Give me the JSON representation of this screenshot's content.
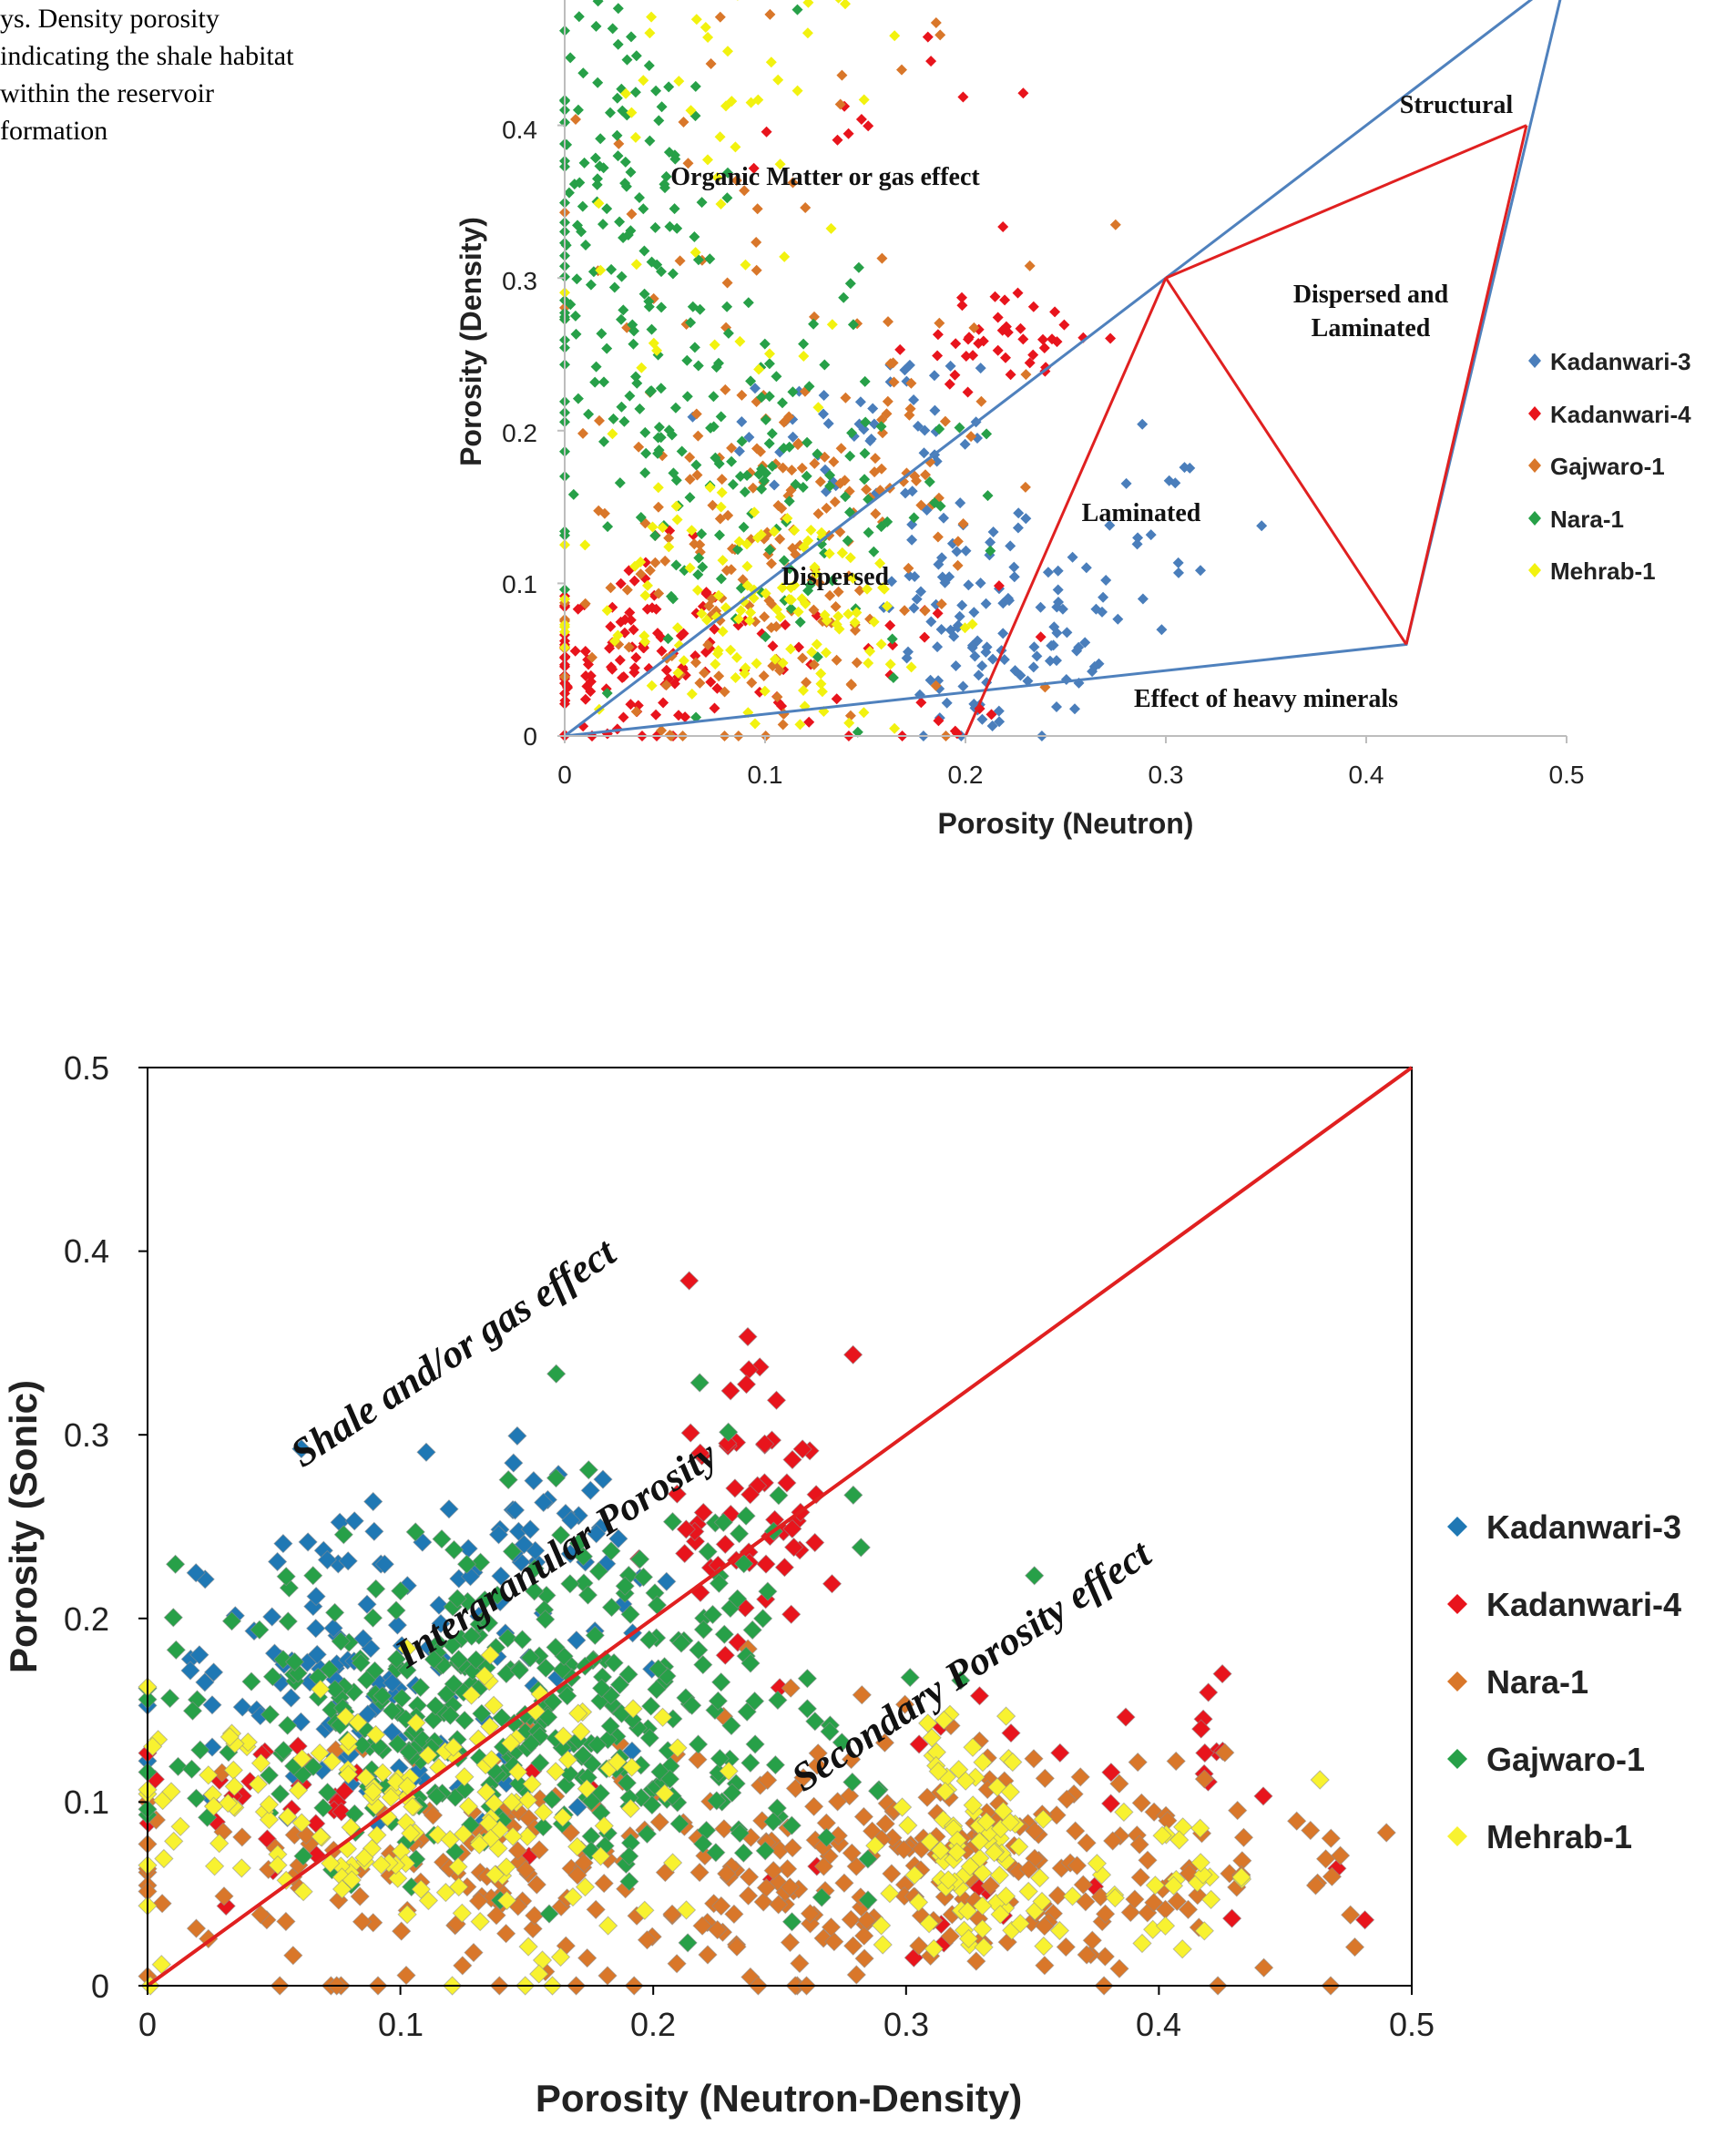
{
  "caption": {
    "lines": [
      "ys. Density porosity",
      "indicating the shale habitat",
      "within the reservoir",
      "formation"
    ]
  },
  "colors": {
    "kadanwari3": "#4a7ebb",
    "kadanwari4": "#e8141c",
    "gajwaro_nara_orange": "#d9772a",
    "green": "#27a048",
    "yellow": "#f2f20f",
    "boundary_blue": "#4f81bd",
    "boundary_red": "#e02020"
  },
  "chart_data": [
    {
      "type": "scatter",
      "title": "",
      "xlabel": "Porosity (Neutron)",
      "ylabel": "Porosity (Density)",
      "xlim": [
        0,
        0.5
      ],
      "ylim": [
        0,
        0.5
      ],
      "x_ticks": [
        "0",
        "0.1",
        "0.2",
        "0.3",
        "0.4",
        "0.5"
      ],
      "y_ticks": [
        "0",
        "0.1",
        "0.2",
        "0.3",
        "0.4"
      ],
      "grid": false,
      "legend_position": "right",
      "series": [
        {
          "name": "Kadanwari-3",
          "color": "#4a7ebb",
          "clusters": [
            [
              0.2,
              0.085,
              0.02,
              0.04,
              60
            ],
            [
              0.24,
              0.07,
              0.02,
              0.03,
              40
            ],
            [
              0.29,
              0.13,
              0.025,
              0.05,
              20
            ],
            [
              0.15,
              0.2,
              0.04,
              0.03,
              50
            ],
            [
              0.21,
              0.02,
              0.02,
              0.02,
              15
            ]
          ]
        },
        {
          "name": "Kadanwari-4",
          "color": "#e8141c",
          "clusters": [
            [
              0.03,
              0.05,
              0.025,
              0.035,
              110
            ],
            [
              0.22,
              0.26,
              0.025,
              0.015,
              40
            ],
            [
              0.12,
              0.04,
              0.05,
              0.03,
              40
            ],
            [
              0.17,
              0.41,
              0.04,
              0.05,
              15
            ]
          ]
        },
        {
          "name": "Gajwaro-1",
          "color": "#d9772a",
          "clusters": [
            [
              0.1,
              0.1,
              0.05,
              0.06,
              150
            ],
            [
              0.14,
              0.17,
              0.03,
              0.05,
              60
            ],
            [
              0.1,
              0.35,
              0.06,
              0.08,
              40
            ]
          ]
        },
        {
          "name": "Nara-1",
          "color": "#27a048",
          "clusters": [
            [
              0.02,
              0.36,
              0.025,
              0.09,
              120
            ],
            [
              0.1,
              0.16,
              0.05,
              0.06,
              130
            ],
            [
              0.05,
              0.27,
              0.04,
              0.06,
              60
            ]
          ]
        },
        {
          "name": "Mehrab-1",
          "color": "#f2f20f",
          "clusters": [
            [
              0.1,
              0.08,
              0.045,
              0.04,
              130
            ],
            [
              0.08,
              0.3,
              0.04,
              0.07,
              30
            ],
            [
              0.1,
              0.45,
              0.04,
              0.03,
              25
            ]
          ]
        }
      ],
      "boundaries": {
        "blue": [
          [
            [
              0,
              0
            ],
            [
              0.3,
              0.3
            ],
            [
              0.5,
              0.5
            ]
          ],
          [
            [
              0,
              0
            ],
            [
              0.42,
              0.06
            ],
            [
              0.5,
              0.5
            ]
          ]
        ],
        "red": [
          [
            [
              0.3,
              0.3
            ],
            [
              0.42,
              0.06
            ]
          ],
          [
            [
              0.2,
              0.0
            ],
            [
              0.3,
              0.3
            ]
          ],
          [
            [
              0.3,
              0.3
            ],
            [
              0.48,
              0.4
            ]
          ],
          [
            [
              0.42,
              0.06
            ],
            [
              0.48,
              0.4
            ]
          ]
        ]
      },
      "annotations": [
        {
          "key": "organic",
          "text": "Organic Matter or gas effect",
          "x": 0.13,
          "y": 0.37
        },
        {
          "key": "structural",
          "text": "Structural",
          "x": 0.445,
          "y": 0.415
        },
        {
          "key": "disp_lam_1",
          "text": "Dispersed and",
          "x": 0.4,
          "y": 0.285
        },
        {
          "key": "disp_lam_2",
          "text": "Laminated",
          "x": 0.4,
          "y": 0.262
        },
        {
          "key": "laminated",
          "text": "Laminated",
          "x": 0.287,
          "y": 0.135
        },
        {
          "key": "dispersed",
          "text": "Dispersed",
          "x": 0.133,
          "y": 0.095
        },
        {
          "key": "heavy",
          "text": "Effect of heavy minerals",
          "x": 0.35,
          "y": 0.022
        }
      ]
    },
    {
      "type": "scatter",
      "title": "",
      "xlabel": "Porosity (Neutron-Density)",
      "ylabel": "Porosity (Sonic)",
      "xlim": [
        0,
        0.5
      ],
      "ylim": [
        0,
        0.5
      ],
      "x_ticks": [
        "0",
        "0.1",
        "0.2",
        "0.3",
        "0.4",
        "0.5"
      ],
      "y_ticks": [
        "0",
        "0.1",
        "0.2",
        "0.3",
        "0.4",
        "0.5"
      ],
      "grid": false,
      "legend_position": "right",
      "series": [
        {
          "name": "Kadanwari-3",
          "color": "#1f78b4",
          "clusters": [
            [
              0.07,
              0.17,
              0.035,
              0.04,
              90
            ],
            [
              0.15,
              0.24,
              0.03,
              0.03,
              50
            ],
            [
              0.12,
              0.12,
              0.05,
              0.03,
              20
            ]
          ]
        },
        {
          "name": "Kadanwari-4",
          "color": "#e8141c",
          "clusters": [
            [
              0.24,
              0.26,
              0.02,
              0.04,
              60
            ],
            [
              0.05,
              0.1,
              0.03,
              0.015,
              25
            ],
            [
              0.42,
              0.13,
              0.02,
              0.02,
              10
            ],
            [
              0.29,
              0.08,
              0.1,
              0.04,
              25
            ]
          ]
        },
        {
          "name": "Nara-1",
          "color": "#d9772a",
          "clusters": [
            [
              0.18,
              0.06,
              0.09,
              0.035,
              220
            ],
            [
              0.37,
              0.06,
              0.06,
              0.03,
              120
            ],
            [
              0.3,
              0.09,
              0.04,
              0.03,
              50
            ]
          ]
        },
        {
          "name": "Gajwaro-1",
          "color": "#27a048",
          "clusters": [
            [
              0.13,
              0.15,
              0.06,
              0.04,
              300
            ],
            [
              0.2,
              0.2,
              0.04,
              0.05,
              60
            ],
            [
              0.2,
              0.1,
              0.06,
              0.04,
              60
            ]
          ]
        },
        {
          "name": "Mehrab-1",
          "color": "#f8f230",
          "clusters": [
            [
              0.1,
              0.1,
              0.05,
              0.035,
              180
            ],
            [
              0.32,
              0.08,
              0.015,
              0.04,
              90
            ],
            [
              0.4,
              0.06,
              0.03,
              0.02,
              30
            ]
          ]
        }
      ],
      "reference_line": [
        [
          0,
          0
        ],
        [
          0.5,
          0.5
        ]
      ],
      "annotations": [
        {
          "key": "shale",
          "text": "Shale and/or gas effect",
          "x": 0.1,
          "y": 0.3
        },
        {
          "key": "intergranular",
          "text": "Intergranular Porosity",
          "x": 0.1,
          "y": 0.17
        },
        {
          "key": "secondary",
          "text": "Secondary Porosity effect",
          "x": 0.26,
          "y": 0.1
        }
      ]
    }
  ]
}
